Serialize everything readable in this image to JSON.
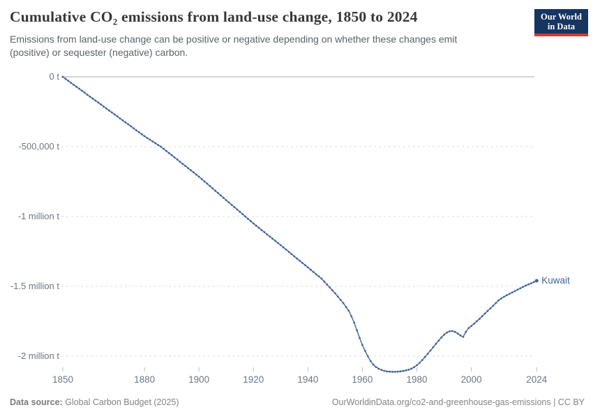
{
  "header": {
    "title": "Cumulative CO₂ emissions from land-use change, 1850 to 2024",
    "subtitle": "Emissions from land-use change can be positive or negative depending on whether these changes emit (positive) or sequester (negative) carbon.",
    "logo": {
      "line1": "Our World",
      "line2": "in Data"
    }
  },
  "footer": {
    "datasource_label": "Data source:",
    "datasource_value": "Global Carbon Budget (2025)",
    "attribution": "OurWorldinData.org/co2-and-greenhouse-gas-emissions | CC BY"
  },
  "colors": {
    "line": "#5476a9",
    "marker": "#44639a",
    "series_label": "#41639c",
    "zero_line": "#a8a8a8",
    "gridline": "#dedede",
    "tick_mark": "#bbbbbb",
    "brand_navy": "#163560",
    "brand_red": "#dc352c"
  },
  "chart_data": {
    "type": "line",
    "title": "Cumulative CO₂ emissions from land-use change, 1850 to 2024",
    "series_label": "Kuwait",
    "unit": "t",
    "xlim": [
      1850,
      2024
    ],
    "ylim": [
      -2200000,
      0
    ],
    "grid": "horizontal-dashed",
    "legend_position": "end-of-line",
    "x_ticks": [
      1850,
      1880,
      1900,
      1920,
      1940,
      1960,
      1980,
      2000,
      2024
    ],
    "y_ticks": [
      {
        "value": 0,
        "label": "0 t"
      },
      {
        "value": -500000,
        "label": "-500,000 t"
      },
      {
        "value": -1000000,
        "label": "-1 million t"
      },
      {
        "value": -1500000,
        "label": "-1.5 million t"
      },
      {
        "value": -2000000,
        "label": "-2 million t"
      }
    ],
    "x_start": 1850,
    "x_end": 2024,
    "values": [
      0,
      -14000,
      -28000,
      -43000,
      -57000,
      -71000,
      -85000,
      -99000,
      -113000,
      -128000,
      -142000,
      -156000,
      -170000,
      -184000,
      -198000,
      -213000,
      -227000,
      -241000,
      -255000,
      -269000,
      -283000,
      -298000,
      -312000,
      -326000,
      -340000,
      -354000,
      -368000,
      -383000,
      -397000,
      -411000,
      -425000,
      -438000,
      -450000,
      -463000,
      -475000,
      -488000,
      -500000,
      -515000,
      -531000,
      -546000,
      -561000,
      -577000,
      -592000,
      -608000,
      -623000,
      -638000,
      -654000,
      -669000,
      -684000,
      -700000,
      -715000,
      -732000,
      -749000,
      -765000,
      -782000,
      -799000,
      -816000,
      -832000,
      -849000,
      -866000,
      -883000,
      -899000,
      -916000,
      -933000,
      -950000,
      -966000,
      -983000,
      -1000000,
      -1017000,
      -1033000,
      -1050000,
      -1066000,
      -1081000,
      -1097000,
      -1112000,
      -1128000,
      -1143000,
      -1159000,
      -1174000,
      -1190000,
      -1205000,
      -1221000,
      -1237000,
      -1253000,
      -1269000,
      -1285000,
      -1301000,
      -1317000,
      -1333000,
      -1349000,
      -1365000,
      -1381000,
      -1397000,
      -1413000,
      -1429000,
      -1445000,
      -1466000,
      -1487000,
      -1508000,
      -1529000,
      -1550000,
      -1573000,
      -1597000,
      -1620000,
      -1648000,
      -1675000,
      -1715000,
      -1760000,
      -1815000,
      -1870000,
      -1920000,
      -1962000,
      -2000000,
      -2035000,
      -2060000,
      -2078000,
      -2090000,
      -2099000,
      -2105000,
      -2109000,
      -2111000,
      -2112000,
      -2112000,
      -2111000,
      -2109000,
      -2106000,
      -2102000,
      -2097000,
      -2090000,
      -2079000,
      -2065000,
      -2048000,
      -2028000,
      -2006000,
      -1983000,
      -1960000,
      -1936000,
      -1912000,
      -1889000,
      -1866000,
      -1846000,
      -1831000,
      -1822000,
      -1820000,
      -1826000,
      -1838000,
      -1852000,
      -1862000,
      -1826000,
      -1799000,
      -1784000,
      -1768000,
      -1750000,
      -1733000,
      -1714000,
      -1695000,
      -1676000,
      -1658000,
      -1639000,
      -1620000,
      -1601000,
      -1587000,
      -1575000,
      -1564000,
      -1554000,
      -1544000,
      -1534000,
      -1524000,
      -1514000,
      -1504000,
      -1494000,
      -1486000,
      -1478000,
      -1469000,
      -1460000
    ]
  }
}
